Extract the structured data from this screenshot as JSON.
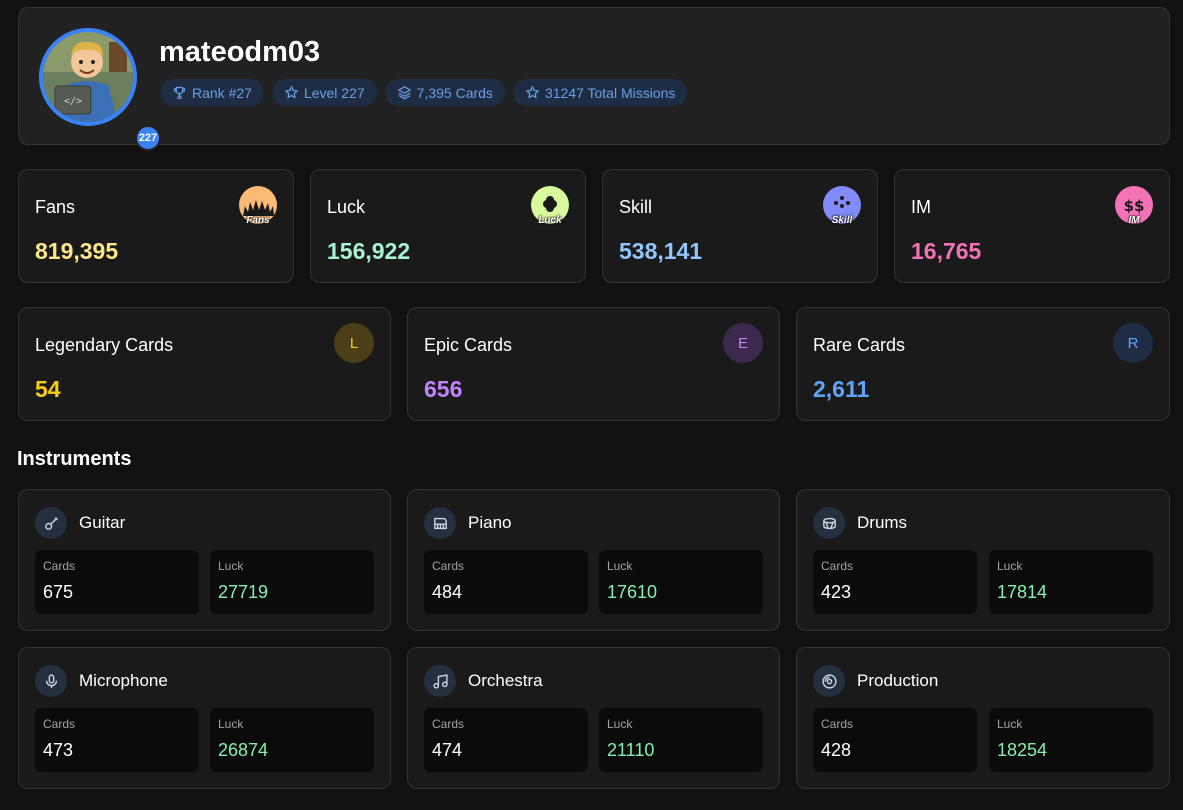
{
  "profile": {
    "username": "mateodm03",
    "level_badge": "227",
    "pills": [
      {
        "icon": "trophy-icon",
        "label": "Rank #27"
      },
      {
        "icon": "star-icon",
        "label": "Level 227"
      },
      {
        "icon": "layers-icon",
        "label": "7,395 Cards"
      },
      {
        "icon": "star-icon",
        "label": "31247 Total Missions"
      }
    ]
  },
  "stats": [
    {
      "label": "Fans",
      "value": "819,395",
      "color": "#fde68a",
      "icon": "fans-icon",
      "icon_text": "Fans",
      "icon_bg": "#fdba74"
    },
    {
      "label": "Luck",
      "value": "156,922",
      "color": "#a7f3d0",
      "icon": "luck-icon",
      "icon_text": "Luck",
      "icon_bg": "#d9f99d"
    },
    {
      "label": "Skill",
      "value": "538,141",
      "color": "#93c5fd",
      "icon": "skill-icon",
      "icon_text": "Skill",
      "icon_bg": "#818cf8"
    },
    {
      "label": "IM",
      "value": "16,765",
      "color": "#f472b6",
      "icon": "im-icon",
      "icon_text": "IM",
      "icon_bg": "#f472b6"
    }
  ],
  "tiers": [
    {
      "label": "Legendary Cards",
      "value": "54",
      "letter": "L",
      "color": "#facc15",
      "icon_bg": "#4a3f17"
    },
    {
      "label": "Epic Cards",
      "value": "656",
      "letter": "E",
      "color": "#c084fc",
      "icon_bg": "#3b2a4d"
    },
    {
      "label": "Rare Cards",
      "value": "2,611",
      "letter": "R",
      "color": "#60a5fa",
      "icon_bg": "#1f2d44"
    }
  ],
  "instruments_title": "Instruments",
  "card_label": "Cards",
  "luck_label": "Luck",
  "instruments": [
    {
      "name": "Guitar",
      "icon": "guitar-icon",
      "cards": "675",
      "luck": "27719"
    },
    {
      "name": "Piano",
      "icon": "piano-icon",
      "cards": "484",
      "luck": "17610"
    },
    {
      "name": "Drums",
      "icon": "drum-icon",
      "cards": "423",
      "luck": "17814"
    },
    {
      "name": "Microphone",
      "icon": "microphone-icon",
      "cards": "473",
      "luck": "26874"
    },
    {
      "name": "Orchestra",
      "icon": "music-note-icon",
      "cards": "474",
      "luck": "21110"
    },
    {
      "name": "Production",
      "icon": "disc-icon",
      "cards": "428",
      "luck": "18254"
    }
  ],
  "colors": {
    "luck_value": "#86efac",
    "accent": "#3b82f6"
  }
}
